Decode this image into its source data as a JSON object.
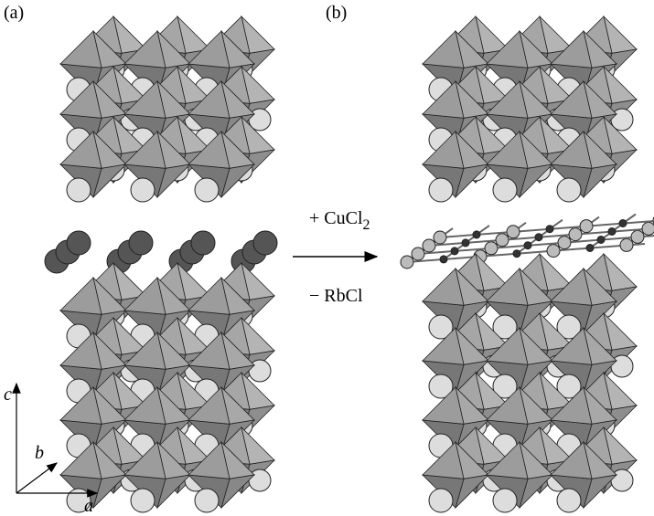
{
  "panels": [
    {
      "label": "(a)"
    },
    {
      "label": "(b)"
    }
  ],
  "reaction": {
    "add": {
      "text": "+ CuCl",
      "subscript": "2"
    },
    "remove": "− RbCl"
  },
  "axes": {
    "c": "c",
    "b": "b",
    "a": "a"
  }
}
